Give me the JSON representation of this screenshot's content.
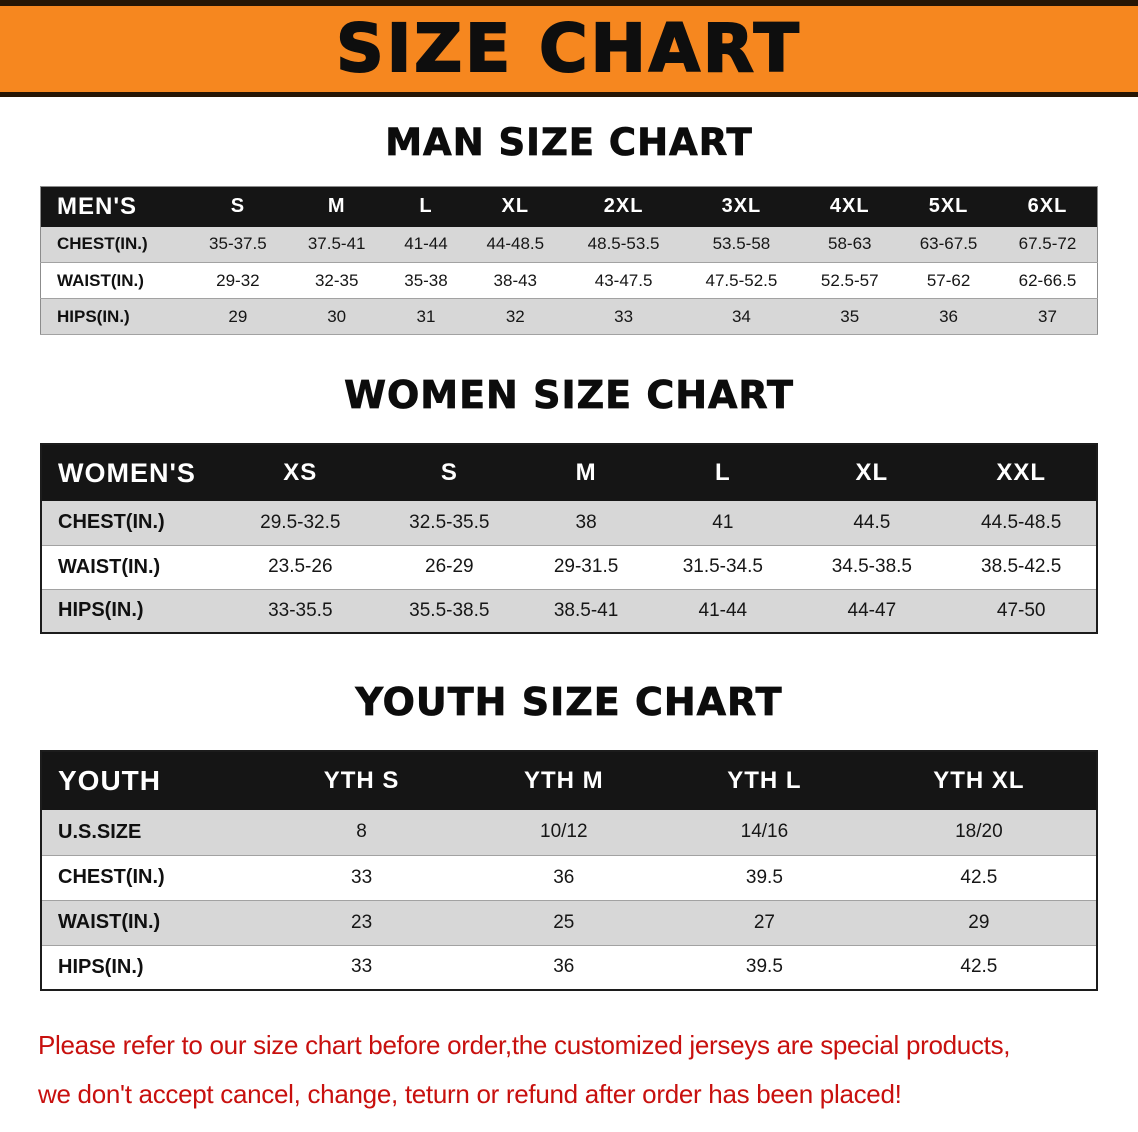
{
  "banner": {
    "title": "SIZE CHART"
  },
  "tables": [
    {
      "id": "men",
      "title": "MAN SIZE CHART",
      "header": [
        "MEN'S",
        "S",
        "M",
        "L",
        "XL",
        "2XL",
        "3XL",
        "4XL",
        "5XL",
        "6XL"
      ],
      "rows": [
        {
          "label": "CHEST(IN.)",
          "values": [
            "35-37.5",
            "37.5-41",
            "41-44",
            "44-48.5",
            "48.5-53.5",
            "53.5-58",
            "58-63",
            "63-67.5",
            "67.5-72"
          ]
        },
        {
          "label": "WAIST(IN.)",
          "values": [
            "29-32",
            "32-35",
            "35-38",
            "38-43",
            "43-47.5",
            "47.5-52.5",
            "52.5-57",
            "57-62",
            "62-66.5"
          ]
        },
        {
          "label": "HIPS(IN.)",
          "values": [
            "29",
            "30",
            "31",
            "32",
            "33",
            "34",
            "35",
            "36",
            "37"
          ]
        }
      ]
    },
    {
      "id": "women",
      "title": "WOMEN SIZE CHART",
      "header": [
        "WOMEN'S",
        "XS",
        "S",
        "M",
        "L",
        "XL",
        "XXL"
      ],
      "rows": [
        {
          "label": "CHEST(IN.)",
          "values": [
            "29.5-32.5",
            "32.5-35.5",
            "38",
            "41",
            "44.5",
            "44.5-48.5"
          ]
        },
        {
          "label": "WAIST(IN.)",
          "values": [
            "23.5-26",
            "26-29",
            "29-31.5",
            "31.5-34.5",
            "34.5-38.5",
            "38.5-42.5"
          ]
        },
        {
          "label": "HIPS(IN.)",
          "values": [
            "33-35.5",
            "35.5-38.5",
            "38.5-41",
            "41-44",
            "44-47",
            "47-50"
          ]
        }
      ]
    },
    {
      "id": "youth",
      "title": "YOUTH SIZE CHART",
      "header": [
        "YOUTH",
        "YTH S",
        "YTH M",
        "YTH L",
        "YTH XL"
      ],
      "rows": [
        {
          "label": "U.S.SIZE",
          "values": [
            "8",
            "10/12",
            "14/16",
            "18/20"
          ]
        },
        {
          "label": "CHEST(IN.)",
          "values": [
            "33",
            "36",
            "39.5",
            "42.5"
          ]
        },
        {
          "label": "WAIST(IN.)",
          "values": [
            "23",
            "25",
            "27",
            "29"
          ]
        },
        {
          "label": "HIPS(IN.)",
          "values": [
            "33",
            "36",
            "39.5",
            "42.5"
          ]
        }
      ]
    }
  ],
  "disclaimer": {
    "line1": "Please refer to our size chart before order,the customized jerseys are special products,",
    "line2": "we don't accept cancel, change, teturn or refund after order has been placed!"
  },
  "colors": {
    "banner_orange": "#f6871f",
    "banner_edge_brown": "#261605",
    "table_header_black": "#151515",
    "row_stripe_gray": "#d7d7d7",
    "disclaimer_red": "#c8100e"
  }
}
